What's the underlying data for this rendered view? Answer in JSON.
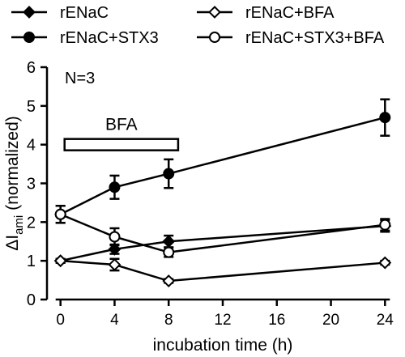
{
  "chart_data": {
    "type": "line",
    "xlabel": "incubation time (h)",
    "ylabel_main": "ΔI",
    "ylabel_sub": "ami",
    "ylabel_suffix": " (normalized)",
    "xlim": [
      -1,
      25
    ],
    "ylim": [
      0,
      6
    ],
    "xticks": [
      0,
      4,
      8,
      12,
      16,
      20,
      24
    ],
    "yticks": [
      0,
      1,
      2,
      3,
      4,
      5,
      6
    ],
    "annotation": "N=3",
    "bfa_bar": {
      "label": "BFA",
      "x_start": 0.3,
      "x_end": 8.7,
      "y": 4.0
    },
    "series": [
      {
        "name": "rENaC",
        "marker": "diamond",
        "fill": "#000000",
        "x": [
          0,
          4,
          8,
          24
        ],
        "y": [
          1.0,
          1.3,
          1.5,
          1.9
        ],
        "err": [
          0.05,
          0.12,
          0.15,
          0.15
        ]
      },
      {
        "name": "rENaC+BFA",
        "marker": "diamond",
        "fill": "#ffffff",
        "x": [
          0,
          4,
          8,
          24
        ],
        "y": [
          1.0,
          0.9,
          0.48,
          0.95
        ],
        "err": [
          0.05,
          0.15,
          0.05,
          0.05
        ]
      },
      {
        "name": "rENaC+STX3",
        "marker": "circle",
        "fill": "#000000",
        "x": [
          0,
          4,
          8,
          24
        ],
        "y": [
          2.2,
          2.9,
          3.25,
          4.7
        ],
        "err": [
          0.22,
          0.3,
          0.37,
          0.47
        ]
      },
      {
        "name": "rENaC+STX3+BFA",
        "marker": "circle",
        "fill": "#ffffff",
        "x": [
          0,
          4,
          8,
          24
        ],
        "y": [
          2.2,
          1.62,
          1.22,
          1.93
        ],
        "err": [
          0.22,
          0.22,
          0.12,
          0.15
        ]
      }
    ],
    "legend_order": [
      0,
      1,
      2,
      3
    ],
    "legend_position": "top"
  }
}
